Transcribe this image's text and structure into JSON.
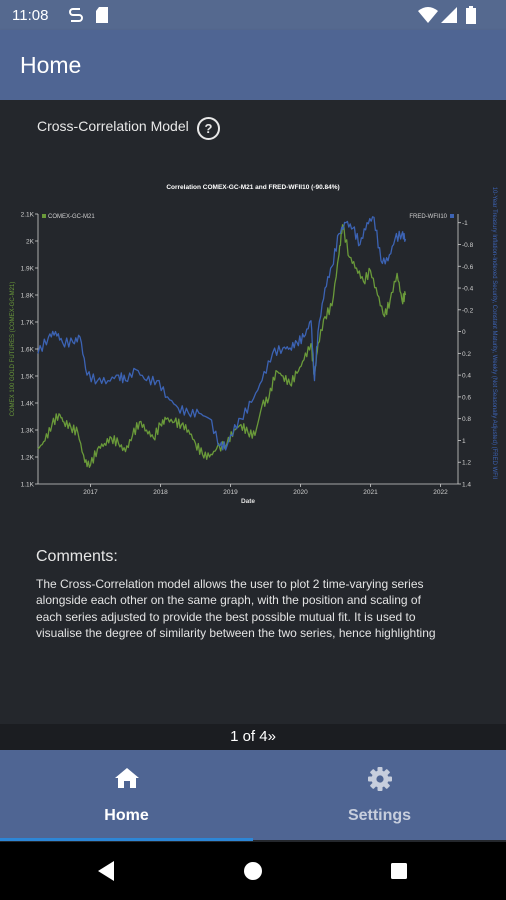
{
  "status_bar": {
    "time": "11:08",
    "icons": [
      "sync-icon",
      "sd-card-icon",
      "wifi-icon",
      "signal-icon",
      "battery-icon"
    ]
  },
  "app_bar": {
    "title": "Home"
  },
  "model": {
    "title": "Cross-Correlation Model",
    "help_icon": "?"
  },
  "chart_data": {
    "type": "line",
    "title": "Correlation COMEX-GC-M21 and FRED-WFII10 (-90.84%)",
    "xlabel": "Date",
    "ylabel_left": "COMEX 100 GOLD FUTURES (COMEX-GC-M21)",
    "ylabel_right": "10-Year Treasury Inflation-Indexed Security, Constant Maturity, Weekly (Not Seasonally Adjusted) (FRED WFII",
    "x_ticks": [
      "2017",
      "2018",
      "2019",
      "2020",
      "2021",
      "2022"
    ],
    "x_range": [
      2016.25,
      2022.25
    ],
    "left_ticks": [
      "1.1K",
      "1.2K",
      "1.3K",
      "1.4K",
      "1.5K",
      "1.6K",
      "1.7K",
      "1.8K",
      "1.9K",
      "2K",
      "2.1K"
    ],
    "left_range": [
      1100,
      2100
    ],
    "right_ticks": [
      "-1",
      "-0.8",
      "-0.6",
      "-0.4",
      "-0.2",
      "0",
      "0.2",
      "0.4",
      "0.6",
      "0.8",
      "1",
      "1.2",
      "1.4"
    ],
    "right_range": [
      -1.08,
      1.4
    ],
    "right_axis_inverted": true,
    "legend_left": "COMEX-GC-M21",
    "legend_right": "FRED-WFII10",
    "series": [
      {
        "name": "COMEX-GC-M21",
        "axis": "left",
        "color": "#6a9a3a",
        "points": [
          [
            2016.25,
            1230
          ],
          [
            2016.35,
            1260
          ],
          [
            2016.45,
            1320
          ],
          [
            2016.55,
            1360
          ],
          [
            2016.62,
            1330
          ],
          [
            2016.72,
            1310
          ],
          [
            2016.82,
            1290
          ],
          [
            2016.92,
            1180
          ],
          [
            2017.0,
            1170
          ],
          [
            2017.1,
            1230
          ],
          [
            2017.2,
            1250
          ],
          [
            2017.3,
            1270
          ],
          [
            2017.4,
            1250
          ],
          [
            2017.5,
            1220
          ],
          [
            2017.6,
            1280
          ],
          [
            2017.7,
            1330
          ],
          [
            2017.8,
            1300
          ],
          [
            2017.9,
            1270
          ],
          [
            2018.0,
            1320
          ],
          [
            2018.08,
            1340
          ],
          [
            2018.2,
            1330
          ],
          [
            2018.3,
            1320
          ],
          [
            2018.4,
            1300
          ],
          [
            2018.5,
            1250
          ],
          [
            2018.6,
            1210
          ],
          [
            2018.7,
            1200
          ],
          [
            2018.8,
            1230
          ],
          [
            2018.95,
            1250
          ],
          [
            2019.05,
            1300
          ],
          [
            2019.15,
            1320
          ],
          [
            2019.25,
            1290
          ],
          [
            2019.35,
            1280
          ],
          [
            2019.45,
            1390
          ],
          [
            2019.55,
            1420
          ],
          [
            2019.65,
            1520
          ],
          [
            2019.75,
            1500
          ],
          [
            2019.85,
            1470
          ],
          [
            2019.95,
            1510
          ],
          [
            2020.05,
            1560
          ],
          [
            2020.15,
            1620
          ],
          [
            2020.2,
            1500
          ],
          [
            2020.25,
            1620
          ],
          [
            2020.35,
            1720
          ],
          [
            2020.45,
            1760
          ],
          [
            2020.55,
            1950
          ],
          [
            2020.6,
            2060
          ],
          [
            2020.7,
            1940
          ],
          [
            2020.8,
            1900
          ],
          [
            2020.9,
            1850
          ],
          [
            2021.0,
            1890
          ],
          [
            2021.1,
            1800
          ],
          [
            2021.2,
            1720
          ],
          [
            2021.28,
            1780
          ],
          [
            2021.38,
            1880
          ],
          [
            2021.45,
            1780
          ],
          [
            2021.5,
            1800
          ]
        ]
      },
      {
        "name": "FRED-WFII10",
        "axis": "right",
        "color": "#3c63b4",
        "points": [
          [
            2016.25,
            0.2
          ],
          [
            2016.4,
            0.05
          ],
          [
            2016.5,
            0.0
          ],
          [
            2016.6,
            0.1
          ],
          [
            2016.75,
            0.1
          ],
          [
            2016.85,
            0.05
          ],
          [
            2016.95,
            0.4
          ],
          [
            2017.1,
            0.45
          ],
          [
            2017.25,
            0.45
          ],
          [
            2017.4,
            0.4
          ],
          [
            2017.5,
            0.45
          ],
          [
            2017.65,
            0.35
          ],
          [
            2017.8,
            0.45
          ],
          [
            2017.95,
            0.45
          ],
          [
            2018.1,
            0.6
          ],
          [
            2018.25,
            0.7
          ],
          [
            2018.4,
            0.75
          ],
          [
            2018.55,
            0.75
          ],
          [
            2018.7,
            0.8
          ],
          [
            2018.85,
            1.05
          ],
          [
            2018.95,
            1.05
          ],
          [
            2019.0,
            0.95
          ],
          [
            2019.15,
            0.8
          ],
          [
            2019.3,
            0.65
          ],
          [
            2019.45,
            0.45
          ],
          [
            2019.6,
            0.2
          ],
          [
            2019.75,
            0.15
          ],
          [
            2019.85,
            0.15
          ],
          [
            2019.95,
            0.1
          ],
          [
            2020.05,
            0.05
          ],
          [
            2020.15,
            -0.1
          ],
          [
            2020.2,
            0.45
          ],
          [
            2020.25,
            0.0
          ],
          [
            2020.35,
            -0.4
          ],
          [
            2020.45,
            -0.6
          ],
          [
            2020.55,
            -0.9
          ],
          [
            2020.65,
            -1.0
          ],
          [
            2020.75,
            -0.95
          ],
          [
            2020.85,
            -0.8
          ],
          [
            2020.95,
            -1.0
          ],
          [
            2021.05,
            -1.05
          ],
          [
            2021.15,
            -0.65
          ],
          [
            2021.25,
            -0.65
          ],
          [
            2021.35,
            -0.85
          ],
          [
            2021.45,
            -0.9
          ],
          [
            2021.5,
            -0.85
          ]
        ]
      }
    ]
  },
  "comments": {
    "heading": "Comments:",
    "lines": [
      "The Cross-Correlation model allows the user to plot 2 time-varying series",
      "alongside each other on the same graph, with the position and scaling of",
      "each series adjusted to provide the best possible mutual fit. It is used to",
      "visualise the degree of similarity between the two series, hence highlighting"
    ]
  },
  "pager": {
    "text": "1 of 4",
    "next_icon": "»"
  },
  "bottom_nav": {
    "items": [
      {
        "label": "Home",
        "icon": "home-icon",
        "active": true
      },
      {
        "label": "Settings",
        "icon": "gear-icon",
        "active": false
      }
    ],
    "active_color": "#ffffff",
    "inactive_color": "#c7cedd",
    "indicator_color": "#2d86d6"
  },
  "system_nav": {
    "icons": [
      "back-icon",
      "home-circle-icon",
      "recents-icon"
    ]
  }
}
